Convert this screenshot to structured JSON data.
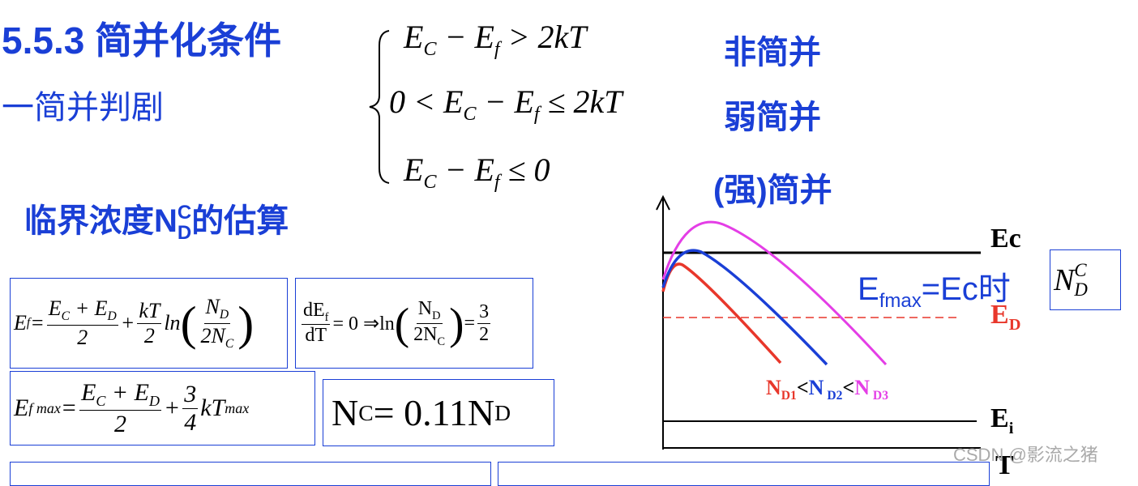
{
  "header": {
    "title": "5.5.3 简并化条件",
    "subtitle": "一简并判剧"
  },
  "conditions": [
    {
      "formula": [
        "E",
        {
          "sub": "C"
        },
        " − E",
        {
          "sub": "f"
        },
        " > 2kT"
      ],
      "label": "非简并"
    },
    {
      "formula": [
        "0 < E",
        {
          "sub": "C"
        },
        " − E",
        {
          "sub": "f"
        },
        " ≤ 2kT"
      ],
      "label": "弱简并"
    },
    {
      "formula": [
        "E",
        {
          "sub": "C"
        },
        " − E",
        {
          "sub": "f"
        },
        " ≤ 0"
      ],
      "label": "(强)简并"
    }
  ],
  "estimate": {
    "heading": [
      "临界浓度",
      "N",
      {
        "sup": "C",
        "sub": "D"
      },
      "的估算"
    ]
  },
  "boxes": [
    [
      "E",
      {
        "sub": "f"
      },
      " = ",
      {
        "num": [
          "E",
          {
            "sub": "C"
          },
          " + E",
          {
            "sub": "D"
          }
        ],
        "den": [
          "2"
        ]
      },
      " + ",
      {
        "num": [
          "kT"
        ],
        "den": [
          "2"
        ]
      },
      "ln",
      {
        "big": "("
      },
      {
        "num": [
          "N",
          {
            "sub": "D"
          }
        ],
        "den": [
          "2N",
          {
            "sub": "C"
          }
        ]
      },
      {
        "big": ")"
      }
    ],
    [
      {
        "num": [
          "dE",
          {
            "sub": "f"
          }
        ],
        "den": [
          "dT"
        ]
      },
      " = 0 ⇒ln",
      {
        "big": "("
      },
      {
        "num": [
          "N",
          {
            "sub": "D"
          }
        ],
        "den": [
          "2N",
          {
            "sub": "C"
          }
        ]
      },
      {
        "big": ")"
      },
      " = ",
      {
        "num": [
          "3"
        ],
        "den": [
          "2"
        ]
      }
    ],
    [
      "E",
      {
        "sub": "f max"
      },
      " = ",
      {
        "num": [
          "E",
          {
            "sub": "C"
          },
          " + E",
          {
            "sub": "D"
          }
        ],
        "den": [
          "2"
        ]
      },
      " + ",
      {
        "num": [
          "3"
        ],
        "den": [
          "4"
        ]
      },
      "kT",
      {
        "sub": "max"
      }
    ],
    [
      "N",
      {
        "sub": "C"
      },
      " = 0.11N",
      {
        "sub": "D"
      }
    ]
  ],
  "diagram": {
    "ec": "Ec",
    "ed": [
      "E",
      {
        "sub": "D"
      }
    ],
    "ei": [
      "E",
      {
        "sub": "i"
      }
    ],
    "t": "T",
    "condition": [
      "E",
      {
        "sub": "fmax"
      },
      "=Ec时"
    ],
    "nd": [
      "N",
      {
        "sup": "C",
        "sub": "D"
      }
    ],
    "order": {
      "sep": "<",
      "items": [
        {
          "name": [
            "N",
            {
              "sub": "D1"
            }
          ],
          "color": "#e8372b"
        },
        {
          "name": [
            "N",
            {
              "sub": " D2"
            }
          ],
          "color": "#1a3fd6"
        },
        {
          "name": [
            "N",
            {
              "sub": " D3"
            }
          ],
          "color": "#e43ee6"
        }
      ]
    }
  },
  "watermark": "CSDN @影流之猪"
}
